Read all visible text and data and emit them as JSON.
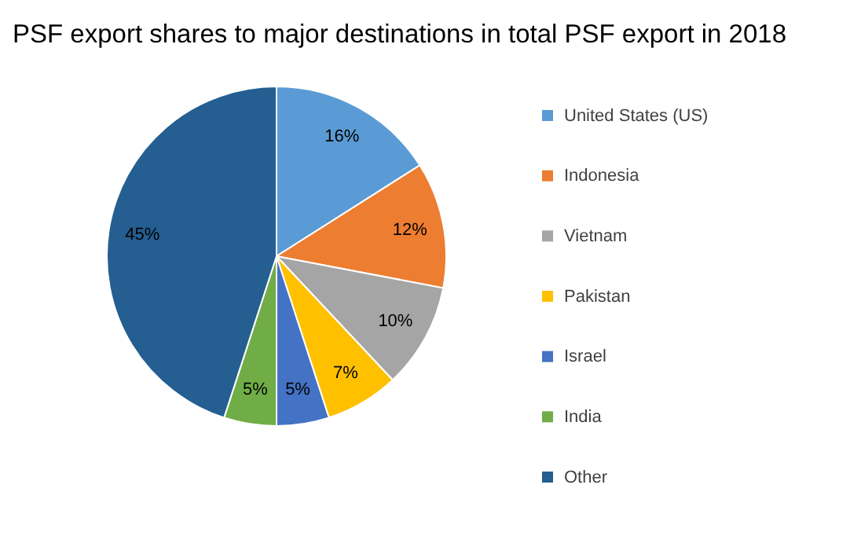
{
  "chart_data": {
    "type": "pie",
    "title": "PSF export shares to major destinations in total PSF export in 2018",
    "categories": [
      "United States (US)",
      "Indonesia",
      "Vietnam",
      "Pakistan",
      "Israel",
      "India",
      "Other"
    ],
    "values": [
      16,
      12,
      10,
      7,
      5,
      5,
      45
    ],
    "colors": [
      "#5b9bd5",
      "#ed7d31",
      "#a5a5a5",
      "#ffc000",
      "#4472c4",
      "#70ad47",
      "#255e91"
    ],
    "value_labels": [
      "16%",
      "12%",
      "10%",
      "7%",
      "5%",
      "5%",
      "45%"
    ],
    "legend": "right"
  }
}
